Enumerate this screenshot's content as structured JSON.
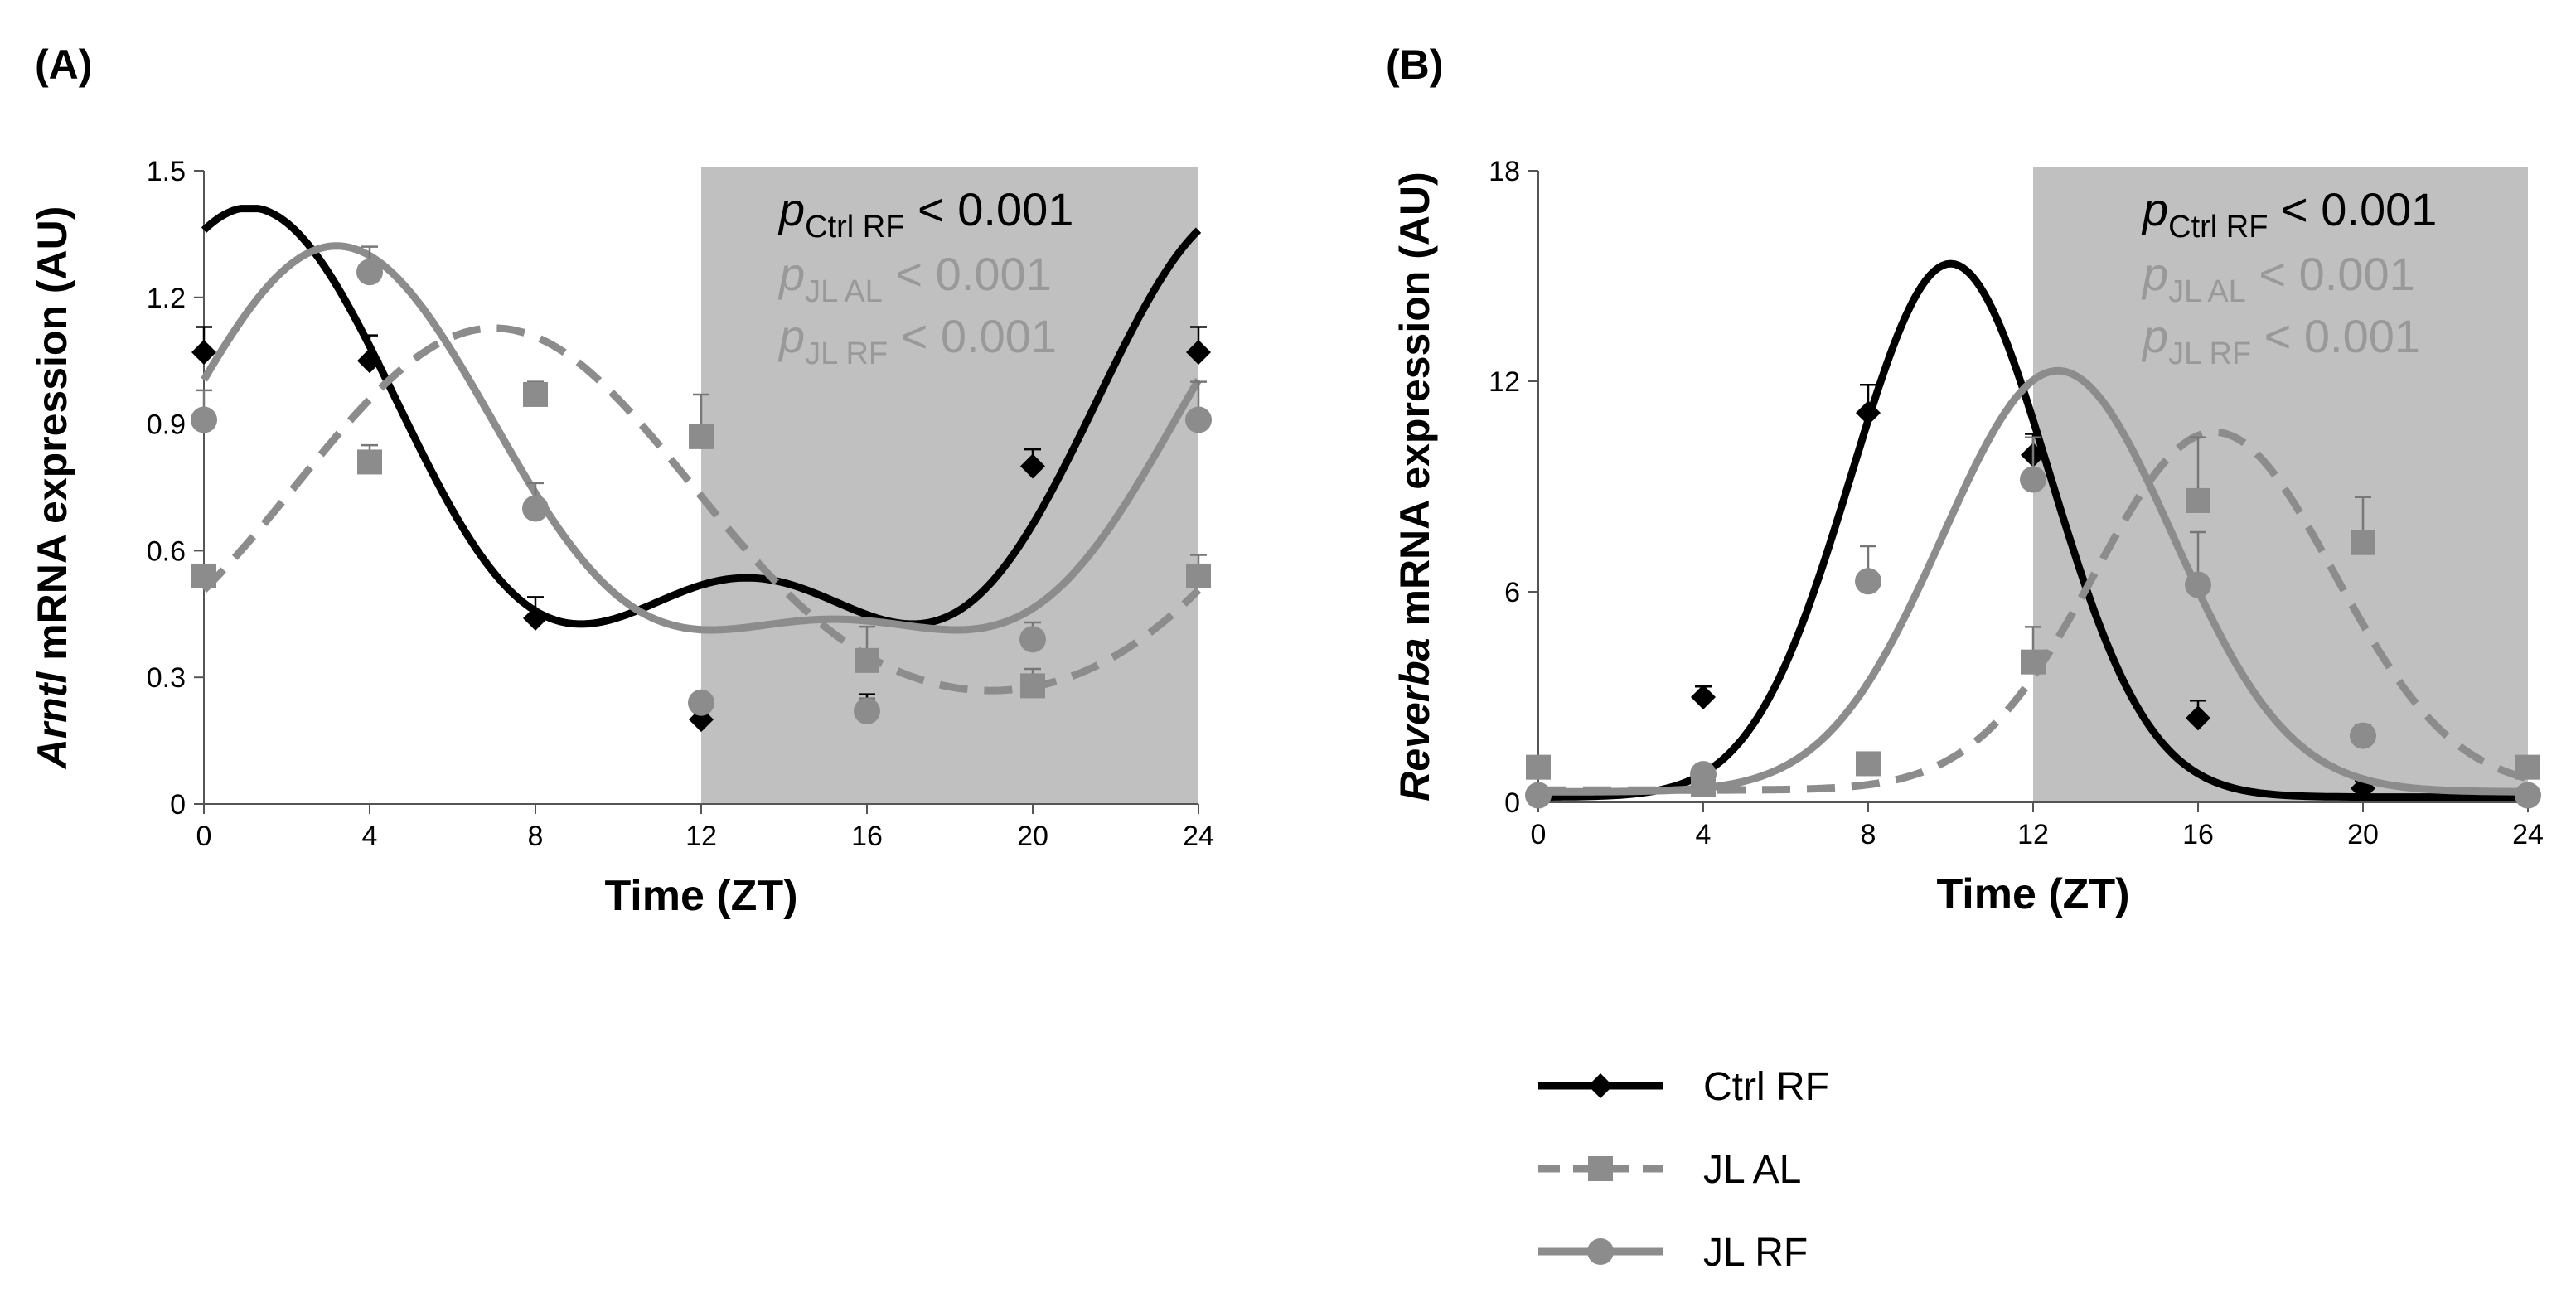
{
  "figure": {
    "legend": [
      {
        "name": "Ctrl RF",
        "style": "solid",
        "marker": "diamond",
        "color": "#000000"
      },
      {
        "name": "JL AL",
        "style": "dashed",
        "marker": "square",
        "color": "#808080"
      },
      {
        "name": "JL RF",
        "style": "solid",
        "marker": "circle",
        "color": "#808080"
      }
    ]
  },
  "chart_data": [
    {
      "type": "line",
      "panel_label": "(A)",
      "ylabel_italic": "Arntl",
      "ylabel_rest": " mRNA expression (AU)",
      "xlabel": "Time (ZT)",
      "x_ticks": [
        0,
        4,
        8,
        12,
        16,
        20,
        24
      ],
      "y_ticks": [
        0,
        0.3,
        0.6,
        0.9,
        1.2,
        1.5
      ],
      "y_tick_labels": [
        "0",
        "0.3",
        "0.6",
        "0.9",
        "1.2",
        "1.5"
      ],
      "xlim": [
        0,
        24
      ],
      "ylim": [
        0,
        1.5
      ],
      "shaded_region": [
        12,
        24
      ],
      "pvalues": [
        {
          "p": "p",
          "sub": "Ctrl RF",
          "text": " < 0.001",
          "color": "#000000"
        },
        {
          "p": "p",
          "sub": "JL AL",
          "text": "  < 0.001",
          "color": "#999999"
        },
        {
          "p": "p",
          "sub": "JL RF",
          "text": "  < 0.001",
          "color": "#999999"
        }
      ],
      "series": [
        {
          "name": "Ctrl RF",
          "x": [
            0,
            4,
            8,
            12,
            16,
            20,
            24
          ],
          "y": [
            1.07,
            1.05,
            0.44,
            0.2,
            0.22,
            0.8,
            1.07
          ],
          "err": [
            0.06,
            0.06,
            0.05,
            0.02,
            0.04,
            0.04,
            0.06
          ],
          "fit": {
            "type": "wave",
            "mesor": 0.755,
            "amp": 0.57,
            "peak": 1.1,
            "sharp": 0.5
          }
        },
        {
          "name": "JL AL",
          "x": [
            0,
            4,
            8,
            12,
            16,
            20,
            24
          ],
          "y": [
            0.54,
            0.81,
            0.97,
            0.87,
            0.34,
            0.28,
            0.54
          ],
          "err": [
            0.02,
            0.04,
            0.03,
            0.1,
            0.08,
            0.04,
            0.05
          ],
          "fit": {
            "type": "wave",
            "mesor": 0.655,
            "amp": 0.455,
            "peak": 7.0,
            "sharp": 0.1
          }
        },
        {
          "name": "JL RF",
          "x": [
            0,
            4,
            8,
            12,
            16,
            20,
            24
          ],
          "y": [
            0.91,
            1.26,
            0.7,
            0.24,
            0.22,
            0.39,
            0.91
          ],
          "err": [
            0.07,
            0.06,
            0.06,
            0.02,
            0.03,
            0.04,
            0.09
          ],
          "fit": {
            "type": "wave",
            "mesor": 0.725,
            "amp": 0.535,
            "peak": 3.2,
            "sharp": 0.35
          }
        }
      ]
    },
    {
      "type": "line",
      "panel_label": "(B)",
      "ylabel_italic": "Reverba",
      "ylabel_rest": " mRNA expression (AU)",
      "xlabel": "Time (ZT)",
      "x_ticks": [
        0,
        4,
        8,
        12,
        16,
        20,
        24
      ],
      "y_ticks": [
        0,
        6,
        12,
        18
      ],
      "y_tick_labels": [
        "0",
        "6",
        "12",
        "18"
      ],
      "xlim": [
        0,
        24
      ],
      "ylim": [
        0,
        18
      ],
      "shaded_region": [
        12,
        24
      ],
      "pvalues": [
        {
          "p": "p",
          "sub": "Ctrl RF",
          "text": " < 0.001",
          "color": "#000000"
        },
        {
          "p": "p",
          "sub": "JL AL",
          "text": "  < 0.001",
          "color": "#999999"
        },
        {
          "p": "p",
          "sub": "JL RF",
          "text": "  < 0.001",
          "color": "#999999"
        }
      ],
      "series": [
        {
          "name": "Ctrl RF",
          "x": [
            0,
            4,
            8,
            12,
            16,
            20,
            24
          ],
          "y": [
            0.2,
            3.0,
            11.1,
            9.9,
            2.4,
            0.4,
            0.2
          ],
          "err": [
            0.1,
            0.3,
            0.8,
            0.6,
            0.5,
            0.2,
            0.1
          ],
          "fit": {
            "type": "peak",
            "base": 0.15,
            "height": 15.2,
            "center": 10.0,
            "width": 2.4
          }
        },
        {
          "name": "JL AL",
          "x": [
            0,
            4,
            8,
            12,
            16,
            20,
            24
          ],
          "y": [
            1.0,
            0.5,
            1.1,
            4.0,
            8.6,
            7.4,
            1.0
          ],
          "err": [
            0.2,
            0.2,
            0.3,
            1.0,
            1.8,
            1.3,
            0.2
          ],
          "fit": {
            "type": "peak",
            "base": 0.35,
            "height": 10.2,
            "center": 16.4,
            "width": 2.9
          }
        },
        {
          "name": "JL RF",
          "x": [
            0,
            4,
            8,
            12,
            16,
            20,
            24
          ],
          "y": [
            0.2,
            0.8,
            6.3,
            9.2,
            6.2,
            1.9,
            0.2
          ],
          "err": [
            0.1,
            0.2,
            1.0,
            1.2,
            1.5,
            0.3,
            0.1
          ],
          "fit": {
            "type": "peak",
            "base": 0.3,
            "height": 12.0,
            "center": 12.6,
            "width": 2.8
          }
        }
      ]
    }
  ]
}
